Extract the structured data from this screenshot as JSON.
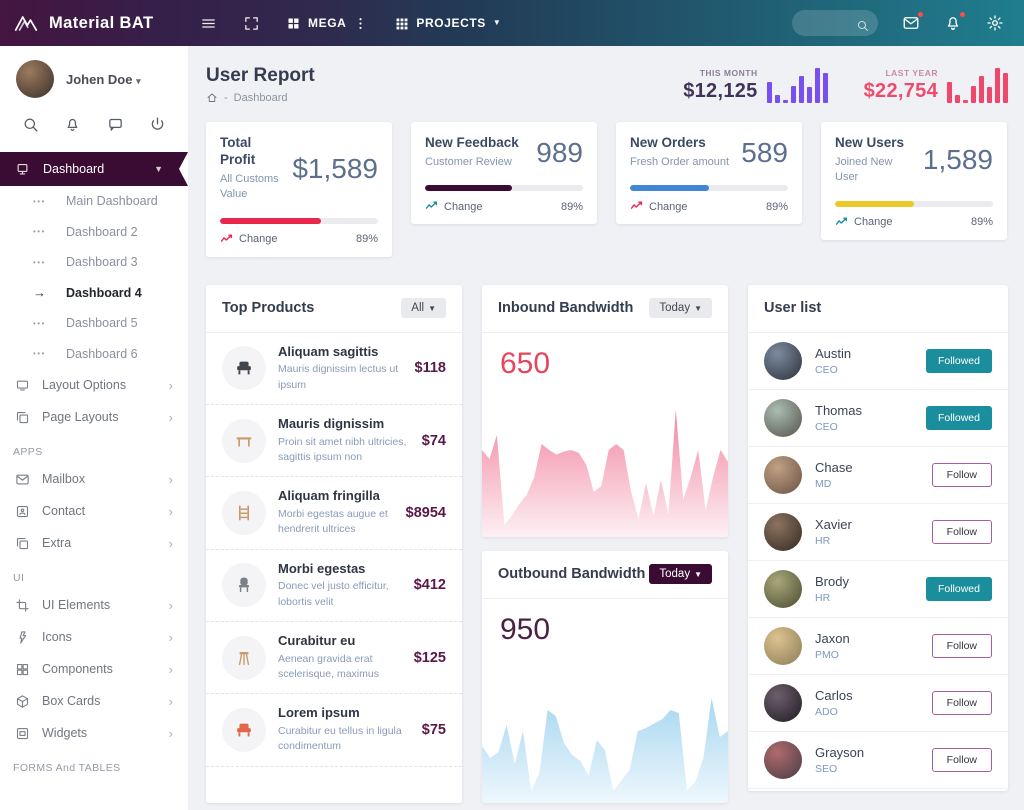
{
  "navbar": {
    "brand": "Material BAT",
    "mega": "MEGA",
    "projects": "PROJECTS"
  },
  "sidebar": {
    "user_name": "Johen Doe",
    "quick_icons": [
      "search",
      "bell",
      "chat",
      "power"
    ],
    "nav": [
      {
        "type": "parent",
        "icon": "desktop",
        "label": "Dashboard",
        "active": true
      },
      {
        "type": "sub",
        "label": "Main Dashboard"
      },
      {
        "type": "sub",
        "label": "Dashboard 2"
      },
      {
        "type": "sub",
        "label": "Dashboard 3"
      },
      {
        "type": "sub",
        "label": "Dashboard 4",
        "active": true
      },
      {
        "type": "sub",
        "label": "Dashboard 5"
      },
      {
        "type": "sub",
        "label": "Dashboard 6"
      },
      {
        "type": "parent",
        "icon": "monitor",
        "label": "Layout Options"
      },
      {
        "type": "parent",
        "icon": "layers",
        "label": "Page Layouts"
      },
      {
        "type": "section",
        "label": "APPS"
      },
      {
        "type": "parent",
        "icon": "mail",
        "label": "Mailbox"
      },
      {
        "type": "parent",
        "icon": "contact",
        "label": "Contact"
      },
      {
        "type": "parent",
        "icon": "copy",
        "label": "Extra"
      },
      {
        "type": "section",
        "label": "UI"
      },
      {
        "type": "parent",
        "icon": "crop",
        "label": "UI Elements"
      },
      {
        "type": "parent",
        "icon": "flash",
        "label": "Icons"
      },
      {
        "type": "parent",
        "icon": "components",
        "label": "Components"
      },
      {
        "type": "parent",
        "icon": "box",
        "label": "Box Cards"
      },
      {
        "type": "parent",
        "icon": "widgets",
        "label": "Widgets"
      },
      {
        "type": "section",
        "label": "FORMS And TABLES"
      }
    ]
  },
  "header": {
    "title": "User Report",
    "breadcrumb": "Dashboard",
    "this_month": {
      "label": "THIS MONTH",
      "value": "$12,125",
      "color": "#423457",
      "bar_color": "#7a4ff0",
      "bars": [
        55,
        20,
        8,
        45,
        70,
        42,
        92,
        78
      ]
    },
    "last_year": {
      "label": "LAST YEAR",
      "value": "$22,754",
      "color": "#ef4b6e",
      "bar_color": "#f0476c",
      "bars": [
        55,
        20,
        8,
        45,
        70,
        42,
        92,
        78
      ]
    }
  },
  "stat_cards": [
    {
      "title": "Total Profit",
      "subtitle": "All Customs Value",
      "value": "$1,589",
      "progress": 64,
      "bar_color": "#e8274b",
      "trend_color": "#e8274b",
      "change_label": "Change",
      "change_value": "89%"
    },
    {
      "title": "New Feedback",
      "subtitle": "Customer Review",
      "value": "989",
      "progress": 55,
      "bar_color": "#3a0c33",
      "trend_color": "#1a8e9c",
      "change_label": "Change",
      "change_value": "89%"
    },
    {
      "title": "New Orders",
      "subtitle": "Fresh Order amount",
      "value": "589",
      "progress": 50,
      "bar_color": "#4287d6",
      "trend_color": "#e8274b",
      "change_label": "Change",
      "change_value": "89%"
    },
    {
      "title": "New Users",
      "subtitle": "Joined New User",
      "value": "1,589",
      "progress": 50,
      "bar_color": "#eac929",
      "trend_color": "#1a8e9c",
      "change_label": "Change",
      "change_value": "89%"
    }
  ],
  "products": {
    "title": "Top Products",
    "filter_label": "All",
    "items": [
      {
        "name": "Aliquam sagittis",
        "desc": "Mauris dignissim lectus ut ipsum",
        "price": "$118",
        "icon": "armchair",
        "icon_color": "#41454d"
      },
      {
        "name": "Mauris dignissim",
        "desc": "Proin sit amet nibh ultricies, sagittis ipsum non",
        "price": "$74",
        "icon": "table",
        "icon_color": "#c79a6a"
      },
      {
        "name": "Aliquam fringilla",
        "desc": "Morbi egestas augue et hendrerit ultrices",
        "price": "$8954",
        "icon": "shelf",
        "icon_color": "#c79a6a"
      },
      {
        "name": "Morbi egestas",
        "desc": "Donec vel justo efficitur, lobortis velit",
        "price": "$412",
        "icon": "chair",
        "icon_color": "#7c8087"
      },
      {
        "name": "Curabitur eu",
        "desc": "Aenean gravida erat scelerisque, maximus",
        "price": "$125",
        "icon": "stool",
        "icon_color": "#c79a6a"
      },
      {
        "name": "Lorem ipsum",
        "desc": "Curabitur eu tellus in ligula condimentum",
        "price": "$75",
        "icon": "armchair",
        "icon_color": "#e2674a"
      }
    ]
  },
  "inbound": {
    "title": "Inbound Bandwidth",
    "period": "Today",
    "value": "650",
    "value_color": "#e8445e",
    "fill_top": "#f287a2",
    "fill_bottom": "#fdf0f4",
    "chart_type": "area",
    "values": [
      58,
      52,
      68,
      8,
      14,
      22,
      28,
      40,
      62,
      58,
      55,
      57,
      58,
      56,
      48,
      30,
      34,
      58,
      62,
      58,
      30,
      12,
      36,
      14,
      38,
      15,
      85,
      25,
      40,
      58,
      18,
      40,
      58,
      50
    ]
  },
  "outbound": {
    "title": "Outbound Bandwidth",
    "period": "Today",
    "value": "950",
    "value_color": "#4b2145",
    "fill_top": "#a8d7f0",
    "fill_bottom": "#eef7fd",
    "chart_type": "area",
    "values": [
      38,
      30,
      34,
      52,
      26,
      48,
      8,
      20,
      62,
      58,
      40,
      32,
      28,
      18,
      42,
      35,
      8,
      15,
      22,
      48,
      50,
      53,
      56,
      62,
      60,
      8,
      14,
      30,
      70,
      44,
      48
    ]
  },
  "users": {
    "title": "User list",
    "items": [
      {
        "name": "Austin",
        "role": "CEO",
        "action": "Followed",
        "followed": true,
        "avatar": [
          "#7d8ba0",
          "#2c3038"
        ]
      },
      {
        "name": "Thomas",
        "role": "CEO",
        "action": "Followed",
        "followed": true,
        "avatar": [
          "#a9bdb2",
          "#56524a"
        ]
      },
      {
        "name": "Chase",
        "role": "MD",
        "action": "Follow",
        "followed": false,
        "avatar": [
          "#c0a184",
          "#6b5142"
        ]
      },
      {
        "name": "Xavier",
        "role": "HR",
        "action": "Follow",
        "followed": false,
        "avatar": [
          "#8d7360",
          "#33291f"
        ]
      },
      {
        "name": "Brody",
        "role": "HR",
        "action": "Followed",
        "followed": true,
        "avatar": [
          "#a8a878",
          "#4b4a33"
        ]
      },
      {
        "name": "Jaxon",
        "role": "PMO",
        "action": "Follow",
        "followed": false,
        "avatar": [
          "#dcc490",
          "#8a7a55"
        ]
      },
      {
        "name": "Carlos",
        "role": "ADO",
        "action": "Follow",
        "followed": false,
        "avatar": [
          "#6d5f6e",
          "#1f1a22"
        ]
      },
      {
        "name": "Grayson",
        "role": "SEO",
        "action": "Follow",
        "followed": false,
        "avatar": [
          "#b06b6d",
          "#473c44"
        ]
      }
    ]
  }
}
